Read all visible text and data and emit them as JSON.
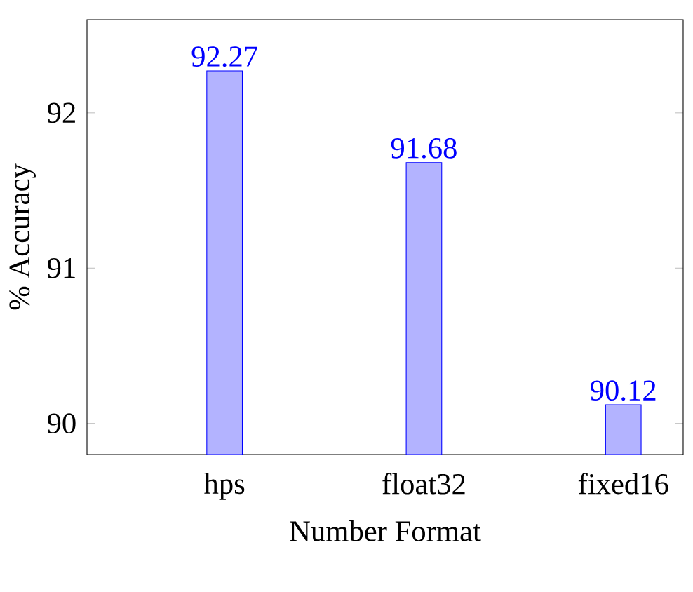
{
  "chart_data": {
    "type": "bar",
    "xlabel": "Number Format",
    "ylabel": "% Accuracy",
    "categories": [
      "hps",
      "float32",
      "fixed16"
    ],
    "values": [
      92.27,
      91.68,
      90.12
    ],
    "color": "#b3b3ff",
    "data_labels": true,
    "ylim": [
      89.8,
      92.6
    ],
    "yticks": [
      90,
      91,
      92
    ],
    "grid": false
  }
}
